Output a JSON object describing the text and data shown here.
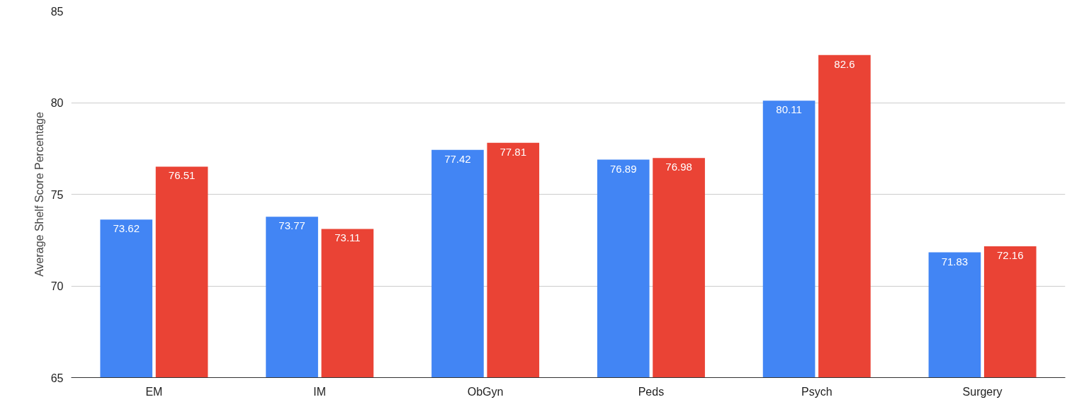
{
  "chart_data": {
    "type": "bar",
    "ylabel": "Average Shelf Score Percentage",
    "categories": [
      "EM",
      "IM",
      "ObGyn",
      "Peds",
      "Psych",
      "Surgery"
    ],
    "series": [
      {
        "color": "#4285f4",
        "values": [
          73.62,
          73.77,
          77.42,
          76.89,
          80.11,
          71.83
        ]
      },
      {
        "color": "#ea4335",
        "values": [
          76.51,
          73.11,
          77.81,
          76.98,
          82.6,
          72.16
        ]
      }
    ],
    "ylim": [
      65,
      85
    ],
    "yticks": [
      65,
      70,
      75,
      80,
      85
    ],
    "grid": "y",
    "data_labels": true
  }
}
